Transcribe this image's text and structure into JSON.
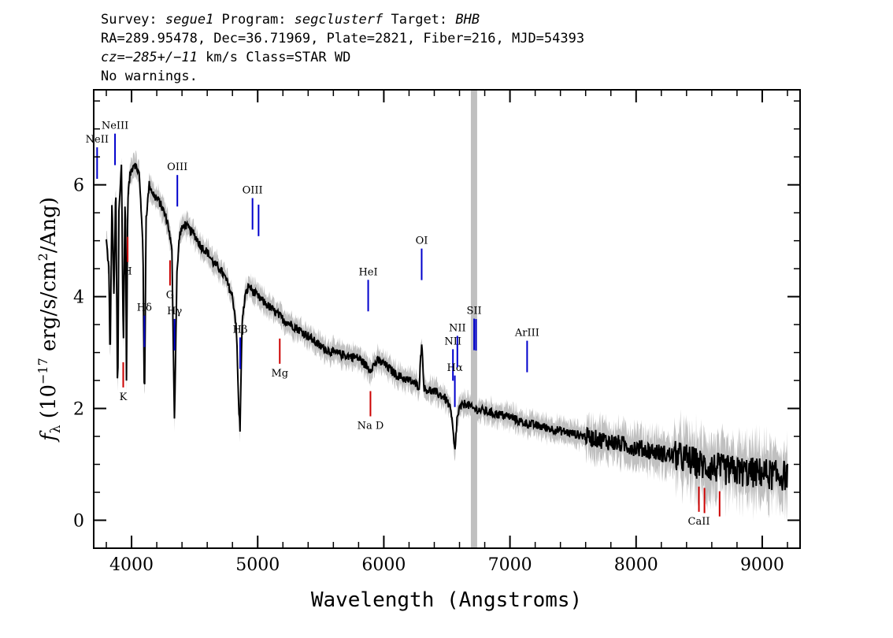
{
  "header": {
    "line1": {
      "a": "Survey: ",
      "b": "segue1",
      "c": " Program: ",
      "d": "segclusterf",
      "e": " Target: ",
      "f": "BHB"
    },
    "line2": "RA=289.95478, Dec=36.71969, Plate=2821, Fiber=216, MJD=54393",
    "line3": {
      "a": "cz=",
      "b": "−285+/−11",
      "c": " km/s Class=STAR WD"
    },
    "line4": "No warnings."
  },
  "chart_data": {
    "type": "line",
    "xlabel": "Wavelength (Angstroms)",
    "ylabel": {
      "main": "f",
      "sub": "λ",
      "mid": " (10",
      "exp1": "−17",
      "mid2": " erg/s/cm",
      "exp2": "2",
      "end": "/Ang)"
    },
    "xlim": [
      3700,
      9300
    ],
    "ylim": [
      -0.5,
      7.7
    ],
    "xticks": [
      4000,
      5000,
      6000,
      7000,
      8000,
      9000
    ],
    "yticks": [
      0,
      2,
      4,
      6
    ],
    "masked_band": [
      6690,
      6740
    ],
    "colors": {
      "flux": "#000000",
      "error": "#c0c0c0",
      "emission": "#0000cc",
      "absorption": "#cc0000",
      "mask": "#c0c0c0"
    },
    "series": [
      {
        "x": [
          3800,
          3820,
          3830,
          3845,
          3860,
          3875,
          3890,
          3900,
          3920,
          3935,
          3950,
          3960,
          3970,
          3990,
          4020,
          4060,
          4090,
          4102,
          4115,
          4140,
          4180,
          4220,
          4260,
          4290,
          4320,
          4340,
          4360,
          4380,
          4420,
          4460,
          4500,
          4550,
          4600,
          4650,
          4700,
          4750,
          4800,
          4830,
          4850,
          4861,
          4875,
          4900,
          4930,
          4960,
          5000,
          5050,
          5100,
          5150,
          5200,
          5300,
          5400,
          5500,
          5600,
          5700,
          5800,
          5890,
          5950,
          6000,
          6100,
          6200,
          6280,
          6300,
          6320,
          6400,
          6480,
          6520,
          6540,
          6563,
          6580,
          6600,
          6650,
          6700,
          6800,
          6900,
          7000,
          7100,
          7200,
          7400,
          7600,
          7800,
          8000,
          8200,
          8400,
          8500,
          8600,
          8700,
          8800,
          8900,
          9000,
          9100,
          9200
        ],
        "y": [
          5.0,
          4.5,
          2.8,
          5.8,
          4.0,
          6.0,
          2.0,
          5.5,
          6.4,
          3.0,
          6.1,
          2.5,
          5.8,
          6.2,
          6.4,
          6.2,
          5.0,
          1.9,
          5.4,
          6.0,
          5.8,
          5.7,
          5.5,
          5.3,
          4.8,
          1.8,
          4.4,
          5.1,
          5.3,
          5.2,
          5.1,
          4.9,
          4.8,
          4.6,
          4.5,
          4.3,
          4.0,
          3.5,
          2.0,
          1.6,
          3.5,
          4.0,
          4.2,
          4.1,
          4.0,
          3.9,
          3.8,
          3.7,
          3.6,
          3.45,
          3.3,
          3.1,
          3.0,
          2.95,
          2.9,
          2.7,
          2.85,
          2.8,
          2.6,
          2.5,
          2.4,
          3.2,
          2.35,
          2.3,
          2.2,
          2.05,
          1.8,
          1.2,
          1.8,
          2.0,
          2.1,
          2.0,
          1.95,
          1.9,
          1.85,
          1.75,
          1.7,
          1.6,
          1.5,
          1.4,
          1.3,
          1.2,
          1.1,
          1.0,
          0.95,
          0.9,
          0.88,
          0.85,
          0.85,
          0.8,
          0.8
        ]
      }
    ],
    "emission_lines": [
      {
        "label": "NeII",
        "x": 3727
      },
      {
        "label": "NeIII",
        "x": 3869
      },
      {
        "label": "Hδ",
        "x": 4102
      },
      {
        "label": "Hγ",
        "x": 4341
      },
      {
        "label": "OIII",
        "x": 4363
      },
      {
        "label": "Hβ",
        "x": 4861
      },
      {
        "label": "OIII",
        "x": 4959
      },
      {
        "label": "",
        "x": 5007
      },
      {
        "label": "HeI",
        "x": 5876
      },
      {
        "label": "OI",
        "x": 6300
      },
      {
        "label": "NII",
        "x": 6548
      },
      {
        "label": "Hα",
        "x": 6563
      },
      {
        "label": "NII",
        "x": 6583
      },
      {
        "label": "SII",
        "x": 6716
      },
      {
        "label": "",
        "x": 6731
      },
      {
        "label": "ArIII",
        "x": 7136
      }
    ],
    "absorption_lines": [
      {
        "label": "K",
        "x": 3934
      },
      {
        "label": "H",
        "x": 3969
      },
      {
        "label": "G",
        "x": 4305
      },
      {
        "label": "Mg",
        "x": 5175
      },
      {
        "label": "Na D",
        "x": 5894
      },
      {
        "label": "CaII",
        "x": 8498
      },
      {
        "label": "",
        "x": 8542
      },
      {
        "label": "",
        "x": 8662
      }
    ]
  }
}
